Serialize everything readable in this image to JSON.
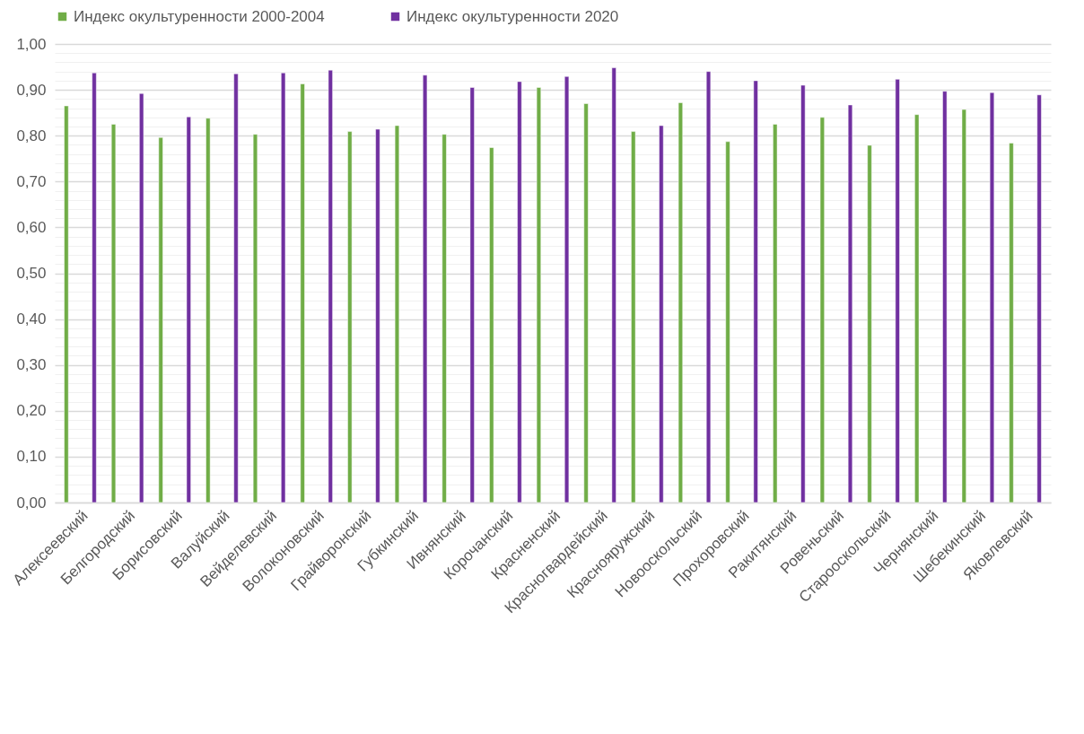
{
  "chart_data": {
    "type": "bar",
    "categories": [
      "Алексеевский",
      "Белгородский",
      "Борисовский",
      "Валуйский",
      "Вейделевский",
      "Волоконовский",
      "Грайворонский",
      "Губкинский",
      "Ивнянский",
      "Корочанский",
      "Красненский",
      "Красногвардейский",
      "Краснояружский",
      "Новооскольский",
      "Прохоровский",
      "Ракитянский",
      "Ровеньский",
      "Старооскольский",
      "Чернянский",
      "Шебекинский",
      "Яковлевский"
    ],
    "series": [
      {
        "name": "Индекс окультуренности 2000-2004",
        "color": "#70ad47",
        "values": [
          0.865,
          0.825,
          0.796,
          0.838,
          0.803,
          0.913,
          0.809,
          0.822,
          0.803,
          0.774,
          0.905,
          0.87,
          0.809,
          0.872,
          0.787,
          0.825,
          0.84,
          0.779,
          0.846,
          0.857,
          0.784
        ]
      },
      {
        "name": "Индекс окультуренности 2020",
        "color": "#7030a0",
        "values": [
          0.937,
          0.892,
          0.841,
          0.935,
          0.937,
          0.943,
          0.814,
          0.932,
          0.905,
          0.918,
          0.929,
          0.948,
          0.822,
          0.94,
          0.92,
          0.91,
          0.867,
          0.923,
          0.897,
          0.894,
          0.889
        ]
      }
    ],
    "ylim": [
      0,
      1
    ],
    "yticks": [
      {
        "value": 0,
        "label": "0,00"
      },
      {
        "value": 0.02,
        "label": null
      },
      {
        "value": 0.04,
        "label": null
      },
      {
        "value": 0.06,
        "label": null
      },
      {
        "value": 0.08,
        "label": null
      },
      {
        "value": 0.1,
        "label": "0,10"
      },
      {
        "value": 0.12,
        "label": null
      },
      {
        "value": 0.14,
        "label": null
      },
      {
        "value": 0.16,
        "label": null
      },
      {
        "value": 0.18,
        "label": null
      },
      {
        "value": 0.2,
        "label": "0,20"
      },
      {
        "value": 0.22,
        "label": null
      },
      {
        "value": 0.24,
        "label": null
      },
      {
        "value": 0.26,
        "label": null
      },
      {
        "value": 0.28,
        "label": null
      },
      {
        "value": 0.3,
        "label": "0,30"
      },
      {
        "value": 0.32,
        "label": null
      },
      {
        "value": 0.34,
        "label": null
      },
      {
        "value": 0.36,
        "label": null
      },
      {
        "value": 0.38,
        "label": null
      },
      {
        "value": 0.4,
        "label": "0,40"
      },
      {
        "value": 0.42,
        "label": null
      },
      {
        "value": 0.44,
        "label": null
      },
      {
        "value": 0.46,
        "label": null
      },
      {
        "value": 0.48,
        "label": null
      },
      {
        "value": 0.5,
        "label": "0,50"
      },
      {
        "value": 0.52,
        "label": null
      },
      {
        "value": 0.54,
        "label": null
      },
      {
        "value": 0.56,
        "label": null
      },
      {
        "value": 0.58,
        "label": null
      },
      {
        "value": 0.6,
        "label": "0,60"
      },
      {
        "value": 0.62,
        "label": null
      },
      {
        "value": 0.64,
        "label": null
      },
      {
        "value": 0.66,
        "label": null
      },
      {
        "value": 0.68,
        "label": null
      },
      {
        "value": 0.7,
        "label": "0,70"
      },
      {
        "value": 0.72,
        "label": null
      },
      {
        "value": 0.74,
        "label": null
      },
      {
        "value": 0.76,
        "label": null
      },
      {
        "value": 0.78,
        "label": null
      },
      {
        "value": 0.8,
        "label": "0,80"
      },
      {
        "value": 0.82,
        "label": null
      },
      {
        "value": 0.84,
        "label": null
      },
      {
        "value": 0.86,
        "label": null
      },
      {
        "value": 0.88,
        "label": null
      },
      {
        "value": 0.9,
        "label": "0,90"
      },
      {
        "value": 0.92,
        "label": null
      },
      {
        "value": 0.94,
        "label": null
      },
      {
        "value": 0.96,
        "label": null
      },
      {
        "value": 0.98,
        "label": null
      },
      {
        "value": 1,
        "label": "1,00"
      }
    ],
    "grid": true,
    "legend": "top"
  }
}
